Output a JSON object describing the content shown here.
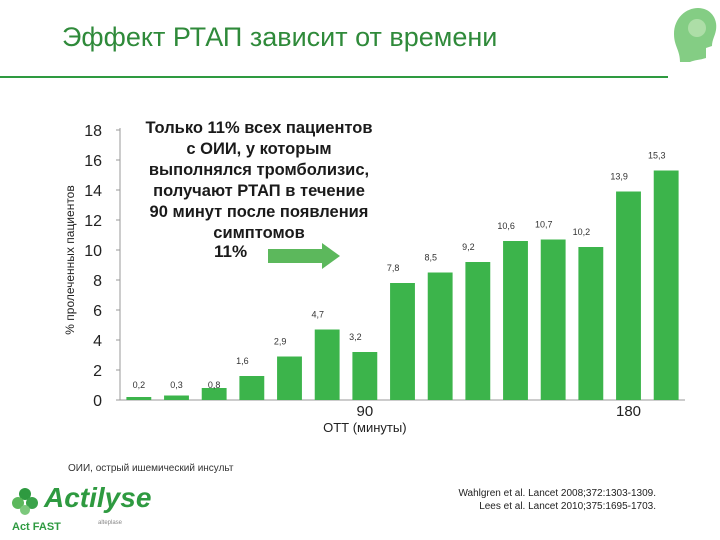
{
  "page": {
    "title": "Эффект РТАП зависит от времени",
    "callout_text": [
      "Только 11% всех пациентов",
      "с ОИИ, у которым",
      "выполнялся тромболизис,",
      "получают РТАП в течение",
      "90 минут после появления",
      "симптомов"
    ],
    "callout_pct": "11%",
    "footnote": "ОИИ, острый ишемический инсульт",
    "ref1": "Wahlgren et al. Lancet 2008;372:1303-1309.",
    "ref2": "Lees et al. Lancet 2010;375:1695-1703.",
    "logo_text": "Actilyse",
    "logo_sub": "alteplase",
    "brand_tag": "Act FAST"
  },
  "colors": {
    "accent": "#2e9a40",
    "bar": "#3cb44b"
  },
  "chart_data": {
    "type": "bar",
    "ylabel": "% пролеченных пациентов",
    "xlabel": "ОТТ (минуты)",
    "ylim": [
      0,
      18
    ],
    "yticks": [
      0,
      2,
      4,
      6,
      8,
      10,
      12,
      14,
      16,
      18
    ],
    "x_tick_labels": [
      {
        "index": 6,
        "label": "90"
      },
      {
        "index": 13,
        "label": "180"
      }
    ],
    "values": [
      0.2,
      0.3,
      0.8,
      1.6,
      2.9,
      4.7,
      3.2,
      7.8,
      8.5,
      9.2,
      10.6,
      10.7,
      10.2,
      13.9,
      15.3
    ],
    "value_labels": [
      "0,2",
      "0,3",
      "0,8",
      "1,6",
      "2,9",
      "4,7",
      "3,2",
      "7,8",
      "8,5",
      "9,2",
      "10,6",
      "10,7",
      "10,2",
      "13,9",
      "15,3"
    ]
  }
}
